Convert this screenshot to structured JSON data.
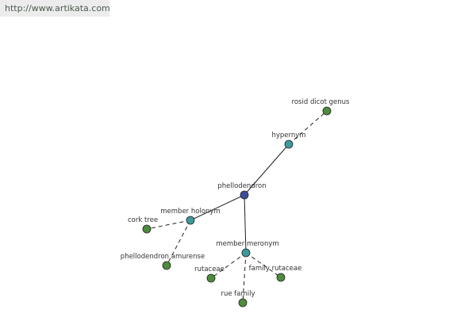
{
  "header": {
    "url": "http://www.artikata.com"
  },
  "nodes": [
    {
      "label": "phellodendron"
    },
    {
      "label": "hypernym"
    },
    {
      "label": "rosid dicot genus"
    },
    {
      "label": "member holonym"
    },
    {
      "label": "cork tree"
    },
    {
      "label": "phellodendron amurense"
    },
    {
      "label": "member meronym"
    },
    {
      "label": "rutaceae"
    },
    {
      "label": "rue family"
    },
    {
      "label": "family rutaceae"
    }
  ]
}
